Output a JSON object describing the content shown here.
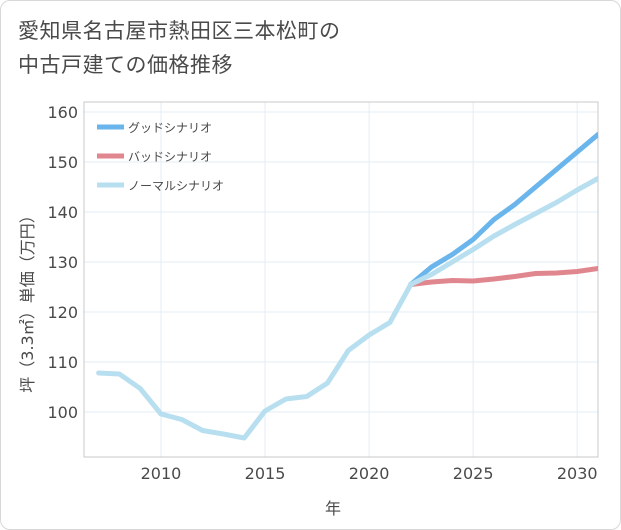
{
  "title": {
    "line1": "愛知県名古屋市熱田区三本松町の",
    "line2": "中古戸建ての価格推移"
  },
  "chart_data": {
    "type": "line",
    "xlabel": "年",
    "ylabel": "坪（3.3㎡）単価（万円）",
    "xlim": [
      2006.3,
      2031
    ],
    "ylim": [
      91,
      162
    ],
    "xticks": [
      2010,
      2015,
      2020,
      2025,
      2030
    ],
    "yticks": [
      100,
      110,
      120,
      130,
      140,
      150,
      160
    ],
    "grid": true,
    "legend_position": "top-left",
    "series": [
      {
        "name": "グッドシナリオ",
        "color": "#6ab6ec",
        "x": [
          2022,
          2023,
          2024,
          2025,
          2026,
          2027,
          2028,
          2029,
          2030,
          2031
        ],
        "y": [
          125.5,
          129.0,
          131.5,
          134.5,
          138.5,
          141.5,
          145.0,
          148.5,
          152.0,
          155.5
        ]
      },
      {
        "name": "バッドシナリオ",
        "color": "#e0868e",
        "x": [
          2022,
          2023,
          2024,
          2025,
          2026,
          2027,
          2028,
          2029,
          2030,
          2031
        ],
        "y": [
          125.5,
          126.0,
          126.3,
          126.2,
          126.6,
          127.1,
          127.7,
          127.8,
          128.1,
          128.7
        ]
      },
      {
        "name": "ノーマルシナリオ",
        "color": "#b8dff0",
        "x": [
          2007,
          2008,
          2009,
          2010,
          2011,
          2012,
          2013,
          2014,
          2015,
          2016,
          2017,
          2018,
          2019,
          2020,
          2021,
          2022,
          2023,
          2024,
          2025,
          2026,
          2027,
          2028,
          2029,
          2030,
          2031
        ],
        "y": [
          107.8,
          107.6,
          104.7,
          99.6,
          98.5,
          96.3,
          95.6,
          94.8,
          100.2,
          102.6,
          103.1,
          105.8,
          112.3,
          115.4,
          117.9,
          125.5,
          127.5,
          130.0,
          132.5,
          135.2,
          137.5,
          139.7,
          141.9,
          144.4,
          146.7
        ]
      }
    ]
  }
}
